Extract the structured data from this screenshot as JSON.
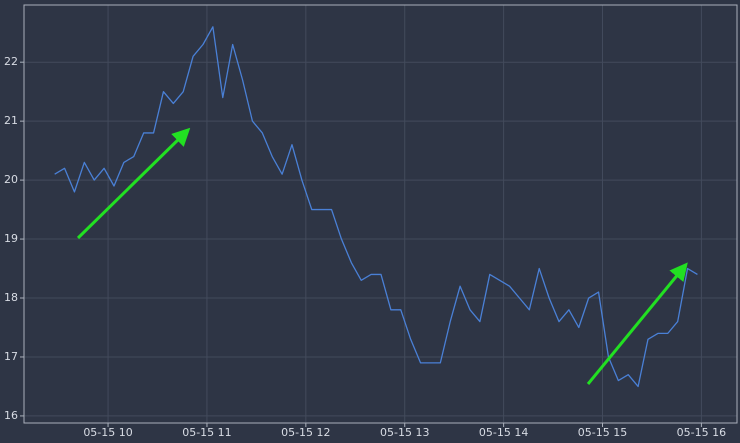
{
  "chart_data": {
    "type": "line",
    "x": [
      9.46,
      9.56,
      9.66,
      9.76,
      9.86,
      9.96,
      10.06,
      10.16,
      10.26,
      10.36,
      10.46,
      10.56,
      10.66,
      10.76,
      10.86,
      10.96,
      11.06,
      11.16,
      11.26,
      11.36,
      11.46,
      11.56,
      11.66,
      11.76,
      11.86,
      11.96,
      12.06,
      12.16,
      12.26,
      12.36,
      12.46,
      12.56,
      12.66,
      12.76,
      12.86,
      12.96,
      13.06,
      13.16,
      13.26,
      13.36,
      13.46,
      13.56,
      13.66,
      13.76,
      13.86,
      13.96,
      14.06,
      14.16,
      14.26,
      14.36,
      14.46,
      14.56,
      14.66,
      14.76,
      14.86,
      14.96,
      15.06,
      15.16,
      15.26,
      15.36,
      15.46,
      15.56,
      15.66,
      15.76,
      15.86,
      15.96
    ],
    "values": [
      20.1,
      20.2,
      19.8,
      20.3,
      20.0,
      20.2,
      19.9,
      20.3,
      20.4,
      20.8,
      20.8,
      21.5,
      21.3,
      21.5,
      22.1,
      22.3,
      22.6,
      21.4,
      22.3,
      21.7,
      21.0,
      20.8,
      20.4,
      20.1,
      20.6,
      20.0,
      19.5,
      19.5,
      19.5,
      19.0,
      18.6,
      18.3,
      18.4,
      18.4,
      17.8,
      17.8,
      17.3,
      16.9,
      16.9,
      16.9,
      17.6,
      18.2,
      17.8,
      17.6,
      18.4,
      18.3,
      18.2,
      18.0,
      17.8,
      18.5,
      18.0,
      17.6,
      17.8,
      17.5,
      18.0,
      18.1,
      17.0,
      16.6,
      16.7,
      16.5,
      17.3,
      17.4,
      17.4,
      17.6,
      18.5,
      18.4
    ],
    "color": "#4a80d6",
    "xlim": [
      9.15,
      16.36
    ],
    "ylim": [
      15.88,
      22.97
    ],
    "xticks": [
      {
        "value": 10,
        "label": "05-15 10"
      },
      {
        "value": 11,
        "label": "05-15 11"
      },
      {
        "value": 12,
        "label": "05-15 12"
      },
      {
        "value": 13,
        "label": "05-15 13"
      },
      {
        "value": 14,
        "label": "05-15 14"
      },
      {
        "value": 15,
        "label": "05-15 15"
      },
      {
        "value": 16,
        "label": "05-15 16"
      }
    ],
    "yticks": [
      16,
      17,
      18,
      19,
      20,
      21,
      22
    ],
    "grid": true
  }
}
